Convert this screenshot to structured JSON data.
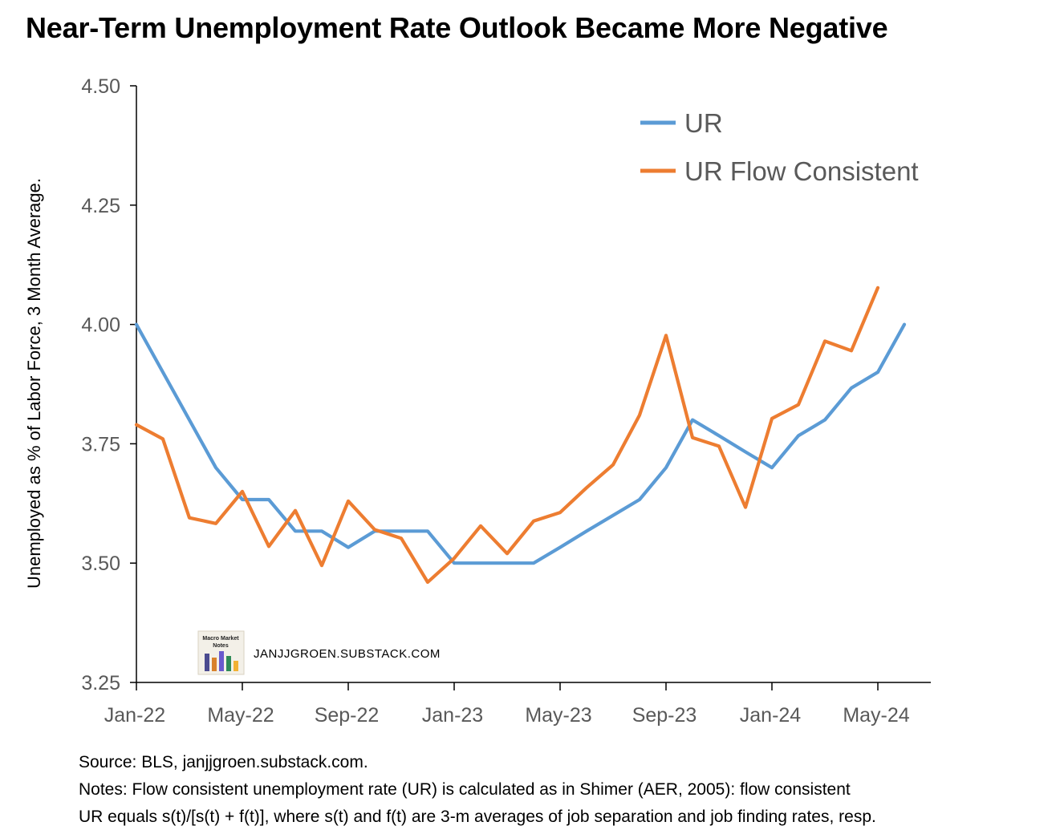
{
  "title": "Near-Term Unemployment Rate Outlook Became More Negative",
  "chart_data": {
    "type": "line",
    "title": "Near-Term Unemployment Rate Outlook Became More Negative",
    "xlabel": "",
    "ylabel": "Unemployed as % of Labor Force, 3 Month Average.",
    "ylim": [
      3.25,
      4.5
    ],
    "yticks": [
      "4.50",
      "4.25",
      "4.00",
      "3.75",
      "3.50",
      "3.25"
    ],
    "ytick_values": [
      4.5,
      4.25,
      4.0,
      3.75,
      3.5,
      3.25
    ],
    "x_tick_labels": [
      "Jan-22",
      "May-22",
      "Sep-22",
      "Jan-23",
      "May-23",
      "Sep-23",
      "Jan-24",
      "May-24"
    ],
    "x": [
      "2022-01",
      "2022-02",
      "2022-03",
      "2022-04",
      "2022-05",
      "2022-06",
      "2022-07",
      "2022-08",
      "2022-09",
      "2022-10",
      "2022-11",
      "2022-12",
      "2023-01",
      "2023-02",
      "2023-03",
      "2023-04",
      "2023-05",
      "2023-06",
      "2023-07",
      "2023-08",
      "2023-09",
      "2023-10",
      "2023-11",
      "2023-12",
      "2024-01",
      "2024-02",
      "2024-03",
      "2024-04",
      "2024-05",
      "2024-06"
    ],
    "grid": false,
    "legend_position": "top-right",
    "series": [
      {
        "name": "UR",
        "color": "#5B9BD5",
        "values": [
          4.0,
          3.9,
          3.8,
          3.7,
          3.633,
          3.633,
          3.567,
          3.567,
          3.533,
          3.567,
          3.567,
          3.567,
          3.5,
          3.5,
          3.5,
          3.5,
          3.533,
          3.567,
          3.6,
          3.633,
          3.7,
          3.8,
          3.767,
          3.733,
          3.7,
          3.767,
          3.8,
          3.867,
          3.9,
          4.0
        ]
      },
      {
        "name": "UR Flow Consistent",
        "color": "#ED7D31",
        "values": [
          3.79,
          3.76,
          3.595,
          3.583,
          3.65,
          3.535,
          3.61,
          3.495,
          3.63,
          3.57,
          3.552,
          3.46,
          3.51,
          3.578,
          3.52,
          3.588,
          3.606,
          3.658,
          3.706,
          3.81,
          3.977,
          3.763,
          3.745,
          3.617,
          3.803,
          3.832,
          3.965,
          3.945,
          4.077,
          null
        ]
      }
    ]
  },
  "watermark": {
    "logo_text": "Macro Market Notes",
    "text": "JANJJGROEN.SUBSTACK.COM"
  },
  "notes": {
    "source": "Source: BLS, janjjgroen.substack.com.",
    "line1": "Notes: Flow consistent unemployment rate (UR) is calculated as in Shimer (AER, 2005):  flow consistent",
    "line2": "UR equals s(t)/[s(t) + f(t)], where s(t) and f(t) are 3-m averages of job separation and job finding rates, resp."
  }
}
